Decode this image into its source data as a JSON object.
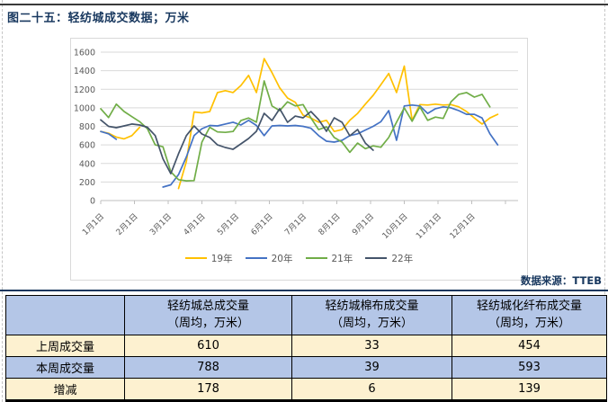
{
  "page": {
    "title": "图二十五：轻纺城成交数据；万米",
    "source": "数据来源：TTEB"
  },
  "chart_data": {
    "type": "line",
    "title": "轻纺城成交数据（万米）",
    "xlabel": "",
    "ylabel": "",
    "x_tick_labels": [
      "1月1日",
      "2月1日",
      "3月1日",
      "4月1日",
      "5月1日",
      "6月1日",
      "7月1日",
      "8月1日",
      "9月1日",
      "10月1日",
      "11月1日",
      "12月1日"
    ],
    "x_frequency": "weekly",
    "y_ticks": [
      0,
      200,
      400,
      600,
      800,
      1000,
      1200,
      1400,
      1600
    ],
    "ylim": [
      0,
      1600
    ],
    "grid": true,
    "legend_position": "bottom",
    "series": [
      {
        "name": "19年",
        "color": "#FFC000",
        "values": [
          745,
          725,
          685,
          665,
          700,
          790,
          null,
          null,
          null,
          null,
          130,
          420,
          955,
          945,
          960,
          1165,
          1185,
          1165,
          1240,
          1350,
          1165,
          1530,
          1380,
          1215,
          1105,
          1060,
          920,
          890,
          845,
          865,
          745,
          765,
          865,
          940,
          1040,
          1135,
          1250,
          1370,
          1165,
          1450,
          865,
          1035,
          1030,
          1040,
          1030,
          1035,
          1010,
          960,
          890,
          825,
          890,
          930
        ]
      },
      {
        "name": "20年",
        "color": "#4472C4",
        "values": [
          745,
          720,
          660,
          null,
          null,
          null,
          null,
          null,
          145,
          170,
          280,
          470,
          700,
          775,
          810,
          805,
          825,
          845,
          815,
          865,
          810,
          700,
          805,
          810,
          805,
          810,
          800,
          780,
          700,
          640,
          630,
          650,
          700,
          720,
          760,
          800,
          850,
          970,
          650,
          1020,
          1030,
          1020,
          940,
          990,
          1010,
          1000,
          970,
          930,
          930,
          890,
          720,
          600
        ]
      },
      {
        "name": "21年",
        "color": "#70AD47",
        "values": [
          990,
          895,
          1040,
          960,
          905,
          850,
          775,
          600,
          580,
          310,
          225,
          212,
          215,
          630,
          790,
          740,
          735,
          745,
          862,
          890,
          845,
          1290,
          1020,
          970,
          1065,
          1020,
          1035,
          890,
          765,
          795,
          680,
          630,
          520,
          620,
          560,
          590,
          575,
          680,
          845,
          1000,
          855,
          1010,
          865,
          900,
          885,
          1065,
          1145,
          1165,
          1115,
          1145,
          1010
        ]
      },
      {
        "name": "22年",
        "color": "#44546A",
        "values": [
          870,
          800,
          785,
          805,
          825,
          815,
          790,
          700,
          450,
          290,
          505,
          700,
          805,
          718,
          680,
          600,
          572,
          553,
          611,
          669,
          747,
          941,
          863,
          990,
          844,
          911,
          892,
          960,
          873,
          747,
          892,
          844,
          698,
          766,
          620,
          543
        ]
      }
    ]
  },
  "table": {
    "columns": [
      {
        "title": "",
        "unit": ""
      },
      {
        "title": "轻纺城总成交量",
        "unit": "（周均，万米）"
      },
      {
        "title": "轻纺城棉布成交量",
        "unit": "（周均，万米）"
      },
      {
        "title": "轻纺城化纤布成交量",
        "unit": "（周均，万米）"
      }
    ],
    "rows": [
      {
        "label": "上周成交量",
        "values": [
          "610",
          "33",
          "454"
        ]
      },
      {
        "label": "本周成交量",
        "values": [
          "788",
          "39",
          "593"
        ]
      },
      {
        "label": "增减",
        "values": [
          "178",
          "6",
          "139"
        ]
      }
    ]
  },
  "colors": {
    "title_navy": "#17375E",
    "rule_navy": "#17375E",
    "header_blue": "#B4C6E7",
    "body_cream": "#FDF1D0",
    "change_red": "#FF0000",
    "grid_gray": "#D9D9D9",
    "axis_gray": "#BFBFBF",
    "tick_text_gray": "#595959"
  }
}
